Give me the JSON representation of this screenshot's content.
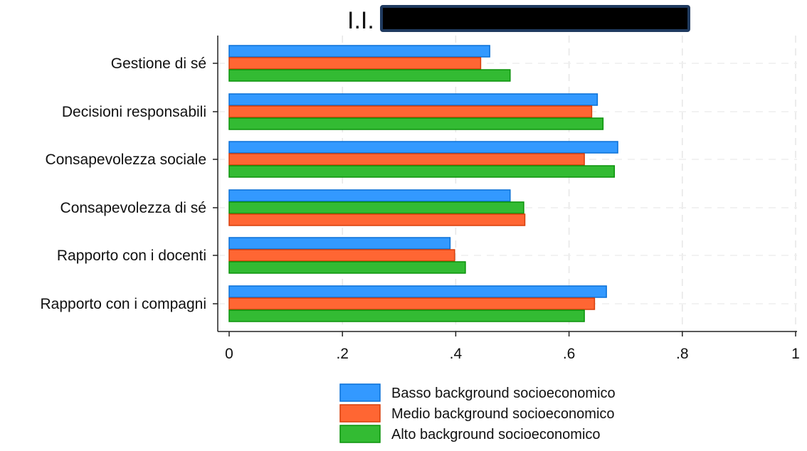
{
  "chart_data": {
    "type": "bar",
    "orientation": "horizontal",
    "title": "I.I.",
    "title_redacted": true,
    "xlabel": "",
    "ylabel": "",
    "xlim": [
      0,
      1
    ],
    "x_ticks": [
      {
        "value": 0,
        "label": "0"
      },
      {
        "value": 0.2,
        "label": ".2"
      },
      {
        "value": 0.4,
        "label": ".4"
      },
      {
        "value": 0.6,
        "label": ".6"
      },
      {
        "value": 0.8,
        "label": ".8"
      },
      {
        "value": 1,
        "label": "1"
      }
    ],
    "grid": true,
    "legend_position": "bottom-center",
    "categories": [
      "Gestione di sé",
      "Decisioni responsabili",
      "Consapevolezza sociale",
      "Consapevolezza di sé",
      "Rapporto con i docenti",
      "Rapporto con i compagni"
    ],
    "series": [
      {
        "name": "Basso background socioeconomico",
        "color": "#3399ff",
        "values": [
          0.46,
          0.65,
          0.686,
          0.496,
          0.39,
          0.666
        ]
      },
      {
        "name": "Medio background socioeconomico",
        "color": "#ff6633",
        "values": [
          0.444,
          0.64,
          0.627,
          0.522,
          0.398,
          0.645
        ]
      },
      {
        "name": "Alto background socioeconomico",
        "color": "#33bb33",
        "values": [
          0.496,
          0.66,
          0.68,
          0.52,
          0.417,
          0.627
        ]
      }
    ],
    "bar_order_per_category": [
      [
        0,
        1,
        2
      ],
      [
        0,
        1,
        2
      ],
      [
        0,
        1,
        2
      ],
      [
        0,
        2,
        1
      ],
      [
        0,
        1,
        2
      ],
      [
        0,
        1,
        2
      ]
    ]
  }
}
